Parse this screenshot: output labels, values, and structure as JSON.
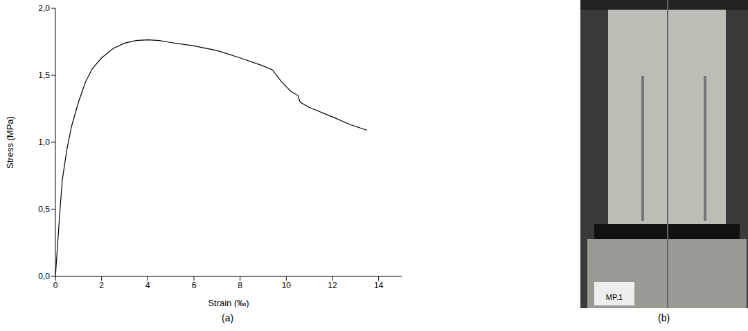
{
  "chart_data": {
    "type": "line",
    "x_label": "Strain (‰)",
    "y_label": "Stress (MPa)",
    "x": [
      0,
      0.1,
      0.2,
      0.3,
      0.5,
      0.7,
      1,
      1.3,
      1.6,
      2,
      2.5,
      3,
      3.5,
      4,
      4.5,
      5,
      6,
      7,
      8,
      9,
      9.4,
      9.8,
      10.2,
      10.5,
      10.6,
      11,
      12,
      12.8,
      13.5
    ],
    "values": [
      0,
      0.25,
      0.5,
      0.72,
      0.95,
      1.12,
      1.3,
      1.45,
      1.55,
      1.63,
      1.7,
      1.74,
      1.76,
      1.765,
      1.76,
      1.745,
      1.72,
      1.685,
      1.63,
      1.57,
      1.54,
      1.45,
      1.38,
      1.35,
      1.3,
      1.26,
      1.19,
      1.13,
      1.09
    ],
    "color": "#000000",
    "xlim": [
      0,
      15
    ],
    "xticks": [
      0,
      2,
      4,
      6,
      8,
      10,
      12,
      14
    ],
    "ylim": [
      0,
      2
    ],
    "yticks": [
      {
        "value": 0,
        "label": "0,0"
      },
      {
        "value": 0.5,
        "label": "0,5"
      },
      {
        "value": 1,
        "label": "1,0"
      },
      {
        "value": 1.5,
        "label": "1,5"
      },
      {
        "value": 2,
        "label": "2,0"
      }
    ],
    "grid": false
  },
  "figure": {
    "panel_labels": [
      "(a)",
      "(b)"
    ],
    "photo_text": "MP.1"
  }
}
